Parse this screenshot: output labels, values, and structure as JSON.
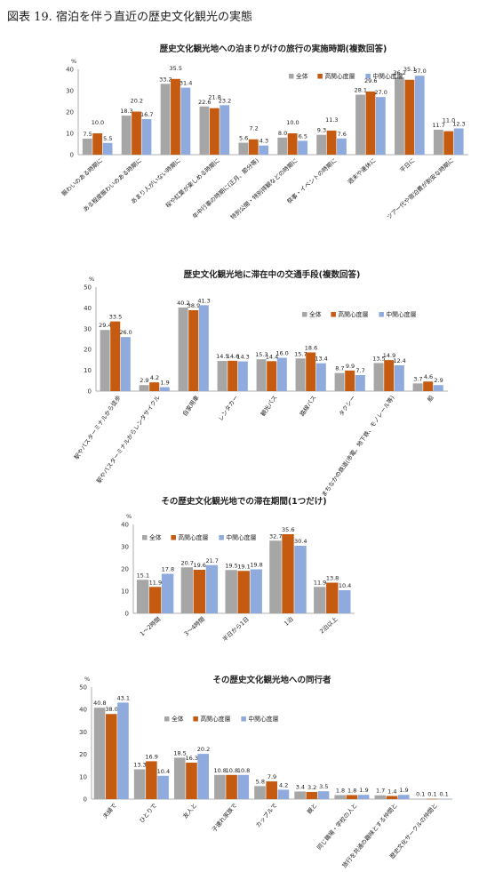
{
  "figure_title": "図表 19.  宿泊を伴う直近の歴史文化観光の実態",
  "colors": {
    "all": "#a6a6a6",
    "high": "#c55a11",
    "mid": "#8faadc"
  },
  "chart_data": [
    {
      "type": "bar",
      "title": "歴史文化観光地への泊まりがけの旅行の実施時期(複数回答)",
      "ylabel": "%",
      "ylim": [
        0,
        40
      ],
      "yticks": [
        0,
        10,
        20,
        30,
        40
      ],
      "legend": "top-right",
      "categories": [
        "賑わいのある時期に",
        "ある程度賑わいのある時期に",
        "あまり人がいない時期に",
        "桜や紅葉が楽しめる時期に",
        "年中行事の時期に(正月、節分等)",
        "特別公開・特別拝観などの時期に",
        "祭事・イベントの時期に",
        "週末や連休に",
        "平日に",
        "ツアー代や宿泊費が割安な時期に"
      ],
      "series": [
        {
          "name": "全体",
          "values": [
            7.5,
            18.3,
            33.2,
            22.6,
            5.6,
            8.0,
            9.3,
            28.1,
            36.2,
            11.7
          ]
        },
        {
          "name": "高関心度層",
          "values": [
            10.0,
            20.2,
            35.5,
            21.8,
            7.2,
            10.0,
            11.3,
            29.6,
            35.1,
            11.0
          ]
        },
        {
          "name": "中関心度層",
          "values": [
            5.5,
            16.7,
            31.4,
            23.2,
            4.3,
            6.5,
            7.6,
            27.0,
            37.0,
            12.3
          ]
        }
      ]
    },
    {
      "type": "bar",
      "title": "歴史文化観光地に滞在中の交通手段(複数回答)",
      "ylabel": "%",
      "ylim": [
        0,
        50
      ],
      "yticks": [
        0,
        10,
        20,
        30,
        40,
        50
      ],
      "legend": "top-right",
      "categories": [
        "駅やバスターミナルから徒歩",
        "駅やバスターミナルからレンタサイクル",
        "自家用車",
        "レンタカー",
        "観光バス",
        "路線バス",
        "タクシー",
        "まちなかの鉄道(市電、地下鉄、モノレール等)",
        "船"
      ],
      "series": [
        {
          "name": "全体",
          "values": [
            29.4,
            2.9,
            40.2,
            14.5,
            15.3,
            15.7,
            8.7,
            13.5,
            3.7
          ]
        },
        {
          "name": "高関心度層",
          "values": [
            33.5,
            4.2,
            38.9,
            14.6,
            14.4,
            18.6,
            9.9,
            14.9,
            4.6
          ]
        },
        {
          "name": "中関心度層",
          "values": [
            26.0,
            1.9,
            41.3,
            14.3,
            16.0,
            13.4,
            7.7,
            12.4,
            2.9
          ]
        }
      ]
    },
    {
      "type": "bar",
      "title": "その歴史文化観光地での滞在期間(1つだけ)",
      "ylabel": "%",
      "ylim": [
        0,
        40
      ],
      "yticks": [
        0,
        10,
        20,
        30,
        40
      ],
      "legend": "top-left",
      "categories": [
        "1～2時間",
        "3～4時間",
        "半日から1日",
        "1泊",
        "2泊以上"
      ],
      "series": [
        {
          "name": "全体",
          "values": [
            15.1,
            20.7,
            19.5,
            32.7,
            11.9
          ]
        },
        {
          "name": "高関心度層",
          "values": [
            11.9,
            19.6,
            19.1,
            35.6,
            13.8
          ]
        },
        {
          "name": "中関心度層",
          "values": [
            17.8,
            21.7,
            19.8,
            30.4,
            10.4
          ]
        }
      ]
    },
    {
      "type": "bar",
      "title": "その歴史文化観光地への同行者",
      "ylabel": "%",
      "ylim": [
        0,
        50
      ],
      "yticks": [
        0,
        10,
        20,
        30,
        40,
        50
      ],
      "legend": "top-center",
      "categories": [
        "夫婦で",
        "ひとりで",
        "友人と",
        "子連れ家族で",
        "カップルで",
        "親と",
        "同じ職場・学校の人と",
        "旅行を共通の趣味とする仲間と",
        "歴史文化サークルの仲間と"
      ],
      "series": [
        {
          "name": "全体",
          "values": [
            40.8,
            13.3,
            18.5,
            10.8,
            5.8,
            3.4,
            1.8,
            1.7,
            0.1
          ]
        },
        {
          "name": "高関心度層",
          "values": [
            38.0,
            16.9,
            16.3,
            10.8,
            7.9,
            3.2,
            1.8,
            1.4,
            0.1
          ]
        },
        {
          "name": "中関心度層",
          "values": [
            43.1,
            10.4,
            20.2,
            10.8,
            4.2,
            3.5,
            1.9,
            1.9,
            0.1
          ]
        }
      ]
    }
  ]
}
